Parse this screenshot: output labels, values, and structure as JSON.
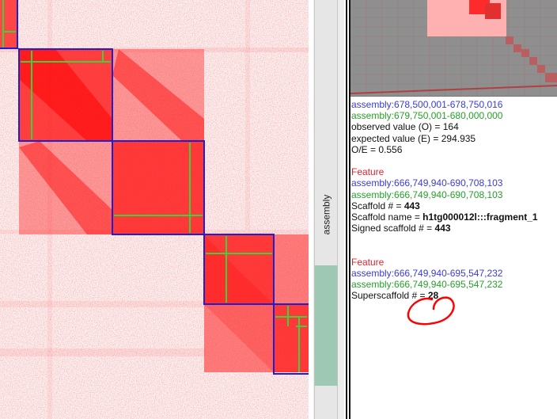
{
  "sidebar": {
    "track_label": "assembly"
  },
  "info": {
    "pixel": {
      "x_region": "assembly:678,500,001-678,750,016",
      "y_region": "assembly:679,750,001-680,000,000",
      "observed": "observed value (O) = 164",
      "expected": "expected value (E) = 294.935",
      "ratio": "O/E = 0.556"
    },
    "scaffold": {
      "heading": "Feature",
      "x_region": "assembly:666,749,940-690,708,103",
      "y_region": "assembly:666,749,940-690,708,103",
      "number_label": "Scaffold # = ",
      "number_value": "443",
      "name_label": "Scaffold name = ",
      "name_value": "h1tg000012l:::fragment_1",
      "signed_label": "Signed scaffold # = ",
      "signed_value": "443"
    },
    "superscaffold": {
      "heading": "Feature",
      "x_region": "assembly:666,749,940-695,547,232",
      "y_region": "assembly:666,749,940-695,547,232",
      "number_label": "Superscaffold # = ",
      "number_value": "28"
    }
  },
  "colors": {
    "heatmap": "#ff0000",
    "scaffold_border": "#1f1fd0",
    "contig_line": "#3cd23c",
    "annotation": "#ff0000",
    "minimap_bg": "#8a8a8a"
  }
}
